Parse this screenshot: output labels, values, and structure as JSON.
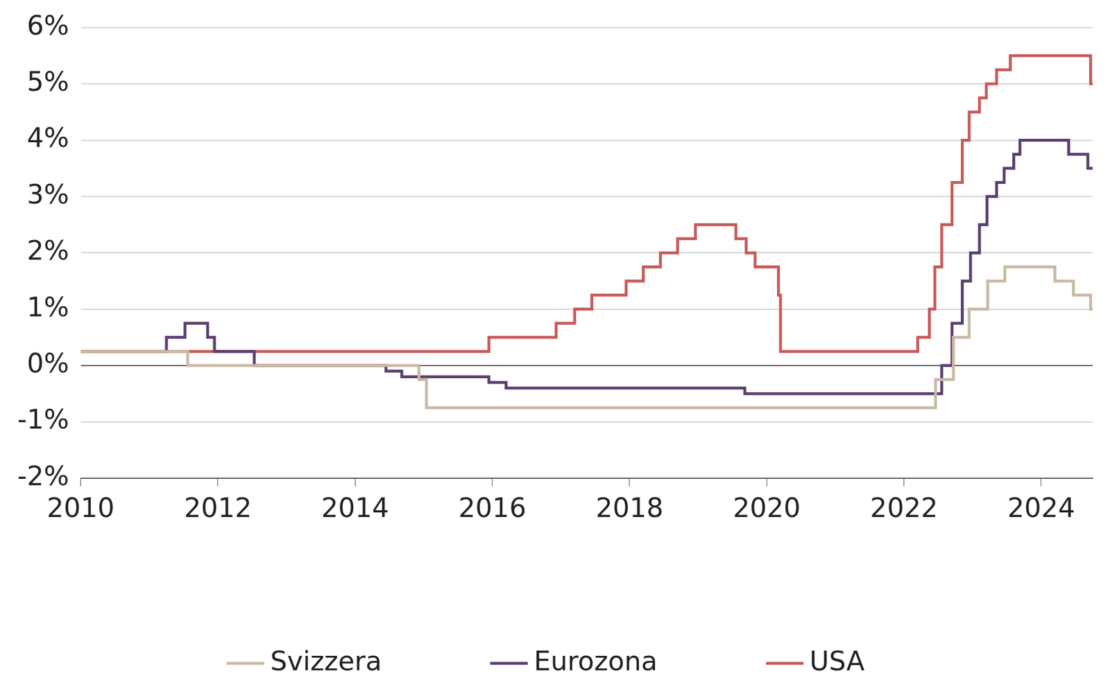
{
  "chart_data": {
    "type": "line",
    "line_style": "stepped",
    "xlim": [
      2010,
      2024.75
    ],
    "xticks": [
      2010,
      2012,
      2014,
      2016,
      2018,
      2020,
      2022,
      2024
    ],
    "ylim": [
      -2,
      6
    ],
    "yticks": [
      {
        "value": -2,
        "label": "-2%"
      },
      {
        "value": -1,
        "label": "-1%"
      },
      {
        "value": 0,
        "label": "0%"
      },
      {
        "value": 1,
        "label": "1%"
      },
      {
        "value": 2,
        "label": "2%"
      },
      {
        "value": 3,
        "label": "3%"
      },
      {
        "value": 4,
        "label": "4%"
      },
      {
        "value": 5,
        "label": "5%"
      },
      {
        "value": 6,
        "label": "6%"
      }
    ],
    "grid": true,
    "legend": "bottom",
    "series": [
      {
        "name": "Svizzera",
        "color": "#c9b9a5",
        "x": [
          2010,
          2011.56,
          2014.93,
          2015.04,
          2022.46,
          2022.72,
          2022.95,
          2023.22,
          2023.47,
          2024.2,
          2024.47,
          2024.72,
          2024.75
        ],
        "values": [
          0.25,
          0,
          -0.25,
          -0.75,
          -0.25,
          0.5,
          1.0,
          1.5,
          1.75,
          1.5,
          1.25,
          1.0,
          1.0
        ]
      },
      {
        "name": "Eurozona",
        "color": "#5b3f6f",
        "x": [
          2010,
          2011.25,
          2011.52,
          2011.85,
          2011.95,
          2012.53,
          2014.45,
          2014.68,
          2015.95,
          2016.2,
          2019.68,
          2022.55,
          2022.7,
          2022.85,
          2022.97,
          2023.1,
          2023.21,
          2023.35,
          2023.46,
          2023.6,
          2023.69,
          2024.4,
          2024.68,
          2024.75
        ],
        "values": [
          0.25,
          0.5,
          0.75,
          0.5,
          0.25,
          0,
          -0.1,
          -0.2,
          -0.3,
          -0.4,
          -0.5,
          0,
          0.75,
          1.5,
          2.0,
          2.5,
          3.0,
          3.25,
          3.5,
          3.75,
          4.0,
          3.75,
          3.5,
          3.5
        ]
      },
      {
        "name": "USA",
        "color": "#c85a5a",
        "x": [
          2010,
          2015.95,
          2016.93,
          2017.2,
          2017.45,
          2017.95,
          2018.2,
          2018.45,
          2018.7,
          2018.96,
          2019.55,
          2019.7,
          2019.83,
          2020.17,
          2020.2,
          2022.2,
          2022.37,
          2022.45,
          2022.55,
          2022.7,
          2022.85,
          2022.95,
          2023.1,
          2023.2,
          2023.35,
          2023.55,
          2024.72,
          2024.75
        ],
        "values": [
          0.25,
          0.5,
          0.75,
          1.0,
          1.25,
          1.5,
          1.75,
          2.0,
          2.25,
          2.5,
          2.25,
          2.0,
          1.75,
          1.25,
          0.25,
          0.5,
          1.0,
          1.75,
          2.5,
          3.25,
          4.0,
          4.5,
          4.75,
          5.0,
          5.25,
          5.5,
          5.0,
          5.0
        ]
      }
    ]
  }
}
